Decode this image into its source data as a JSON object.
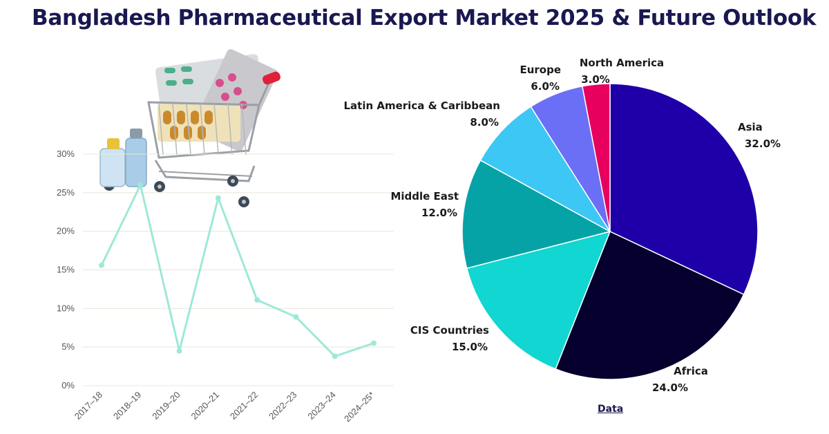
{
  "title": "Bangladesh Pharmaceutical Export Market 2025 & Future Outlook",
  "data_link": "Data",
  "colors": {
    "title": "#1a1850",
    "line": "#9ee8d8",
    "grid": "#e4e8d8",
    "slice_colors": [
      "#1f00a8",
      "#06002e",
      "#11d6d1",
      "#06a3a6",
      "#3cc7f5",
      "#6b6ff5",
      "#e8005e"
    ]
  },
  "illustration": {
    "name": "pharmacy-shopping-cart-with-pills"
  },
  "chart_data": [
    {
      "type": "line",
      "title": "",
      "xlabel": "",
      "ylabel": "",
      "categories": [
        "2017–18",
        "2018–19",
        "2019–20",
        "2020–21",
        "2021–22",
        "2022–23",
        "2023–24",
        "2024–25*"
      ],
      "values": [
        15.6,
        26.0,
        4.5,
        24.3,
        11.1,
        8.9,
        3.8,
        5.5
      ],
      "y_ticks": [
        "0%",
        "5%",
        "10%",
        "15%",
        "20%",
        "25%",
        "30%"
      ],
      "ylim": [
        0,
        30
      ],
      "grid": true
    },
    {
      "type": "pie",
      "title": "",
      "start": "top, clockwise",
      "slices": [
        {
          "label": "Asia",
          "pct_label": "32.0%",
          "value": 32.0
        },
        {
          "label": "Africa",
          "pct_label": "24.0%",
          "value": 24.0
        },
        {
          "label": "CIS Countries",
          "pct_label": "15.0%",
          "value": 15.0
        },
        {
          "label": "Middle East",
          "pct_label": "12.0%",
          "value": 12.0
        },
        {
          "label": "Latin America & Caribbean",
          "pct_label": "8.0%",
          "value": 8.0
        },
        {
          "label": "Europe",
          "pct_label": "6.0%",
          "value": 6.0
        },
        {
          "label": "North America",
          "pct_label": "3.0%",
          "value": 3.0
        }
      ]
    }
  ]
}
